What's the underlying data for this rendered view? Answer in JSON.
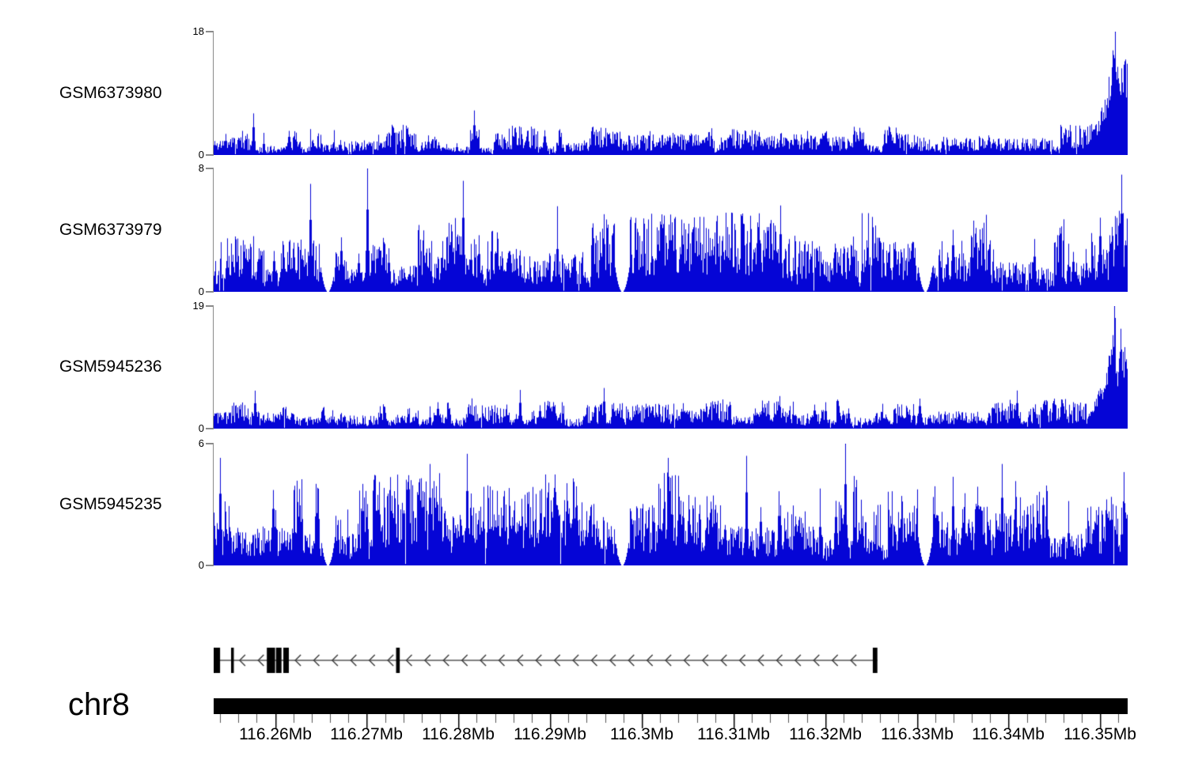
{
  "page": {
    "background": "#ffffff"
  },
  "colors": {
    "signal": "#0505d6",
    "axis_gray": "#8a8a8a",
    "ink": "#000000",
    "gene": "#000000"
  },
  "tracks": [
    {
      "label": "GSM6373980",
      "ymax_label": "18",
      "ymin_label": "0"
    },
    {
      "label": "GSM6373979",
      "ymax_label": "8",
      "ymin_label": "0"
    },
    {
      "label": "GSM5945236",
      "ymax_label": "19",
      "ymin_label": "0"
    },
    {
      "label": "GSM5945235",
      "ymax_label": "6",
      "ymin_label": "0"
    }
  ],
  "chromosome": {
    "name": "chr8"
  },
  "genome_axis": {
    "range_mb": [
      116.2533,
      116.353
    ],
    "minor_step_mb": 0.002,
    "unit": "Mb",
    "major_ticks": [
      {
        "mb": 116.26,
        "label": "116.26Mb"
      },
      {
        "mb": 116.27,
        "label": "116.27Mb"
      },
      {
        "mb": 116.28,
        "label": "116.28Mb"
      },
      {
        "mb": 116.29,
        "label": "116.29Mb"
      },
      {
        "mb": 116.3,
        "label": "116.3Mb"
      },
      {
        "mb": 116.31,
        "label": "116.31Mb"
      },
      {
        "mb": 116.32,
        "label": "116.32Mb"
      },
      {
        "mb": 116.33,
        "label": "116.33Mb"
      },
      {
        "mb": 116.34,
        "label": "116.34Mb"
      },
      {
        "mb": 116.35,
        "label": "116.35Mb"
      }
    ]
  },
  "gene_model": {
    "chromosome": "chr8",
    "strand": "-",
    "span_mb": [
      116.2532,
      116.3257
    ],
    "exons_mb": [
      [
        116.2532,
        116.254
      ],
      [
        116.2552,
        116.2555
      ],
      [
        116.2591,
        116.26
      ],
      [
        116.2601,
        116.2607
      ],
      [
        116.2609,
        116.2615
      ],
      [
        116.2732,
        116.2736
      ],
      [
        116.3252,
        116.3257
      ]
    ]
  },
  "chart_data": {
    "type": "area",
    "title": "",
    "x_range_mb": [
      116.2533,
      116.353
    ],
    "legend": "none",
    "grid": false,
    "series": [
      {
        "name": "GSM6373980",
        "ylim": [
          0,
          18
        ],
        "seed": 11,
        "base": 1.5,
        "spike_rate": 0.05,
        "spike_pow": 2,
        "spike_scale": 4.5,
        "peaks": [
          {
            "x_frac": 0.285,
            "h": 6.5
          },
          {
            "x_frac": 0.9865,
            "h": 18
          }
        ],
        "dips": [],
        "surge": [
          [
            0.958,
            0.1
          ],
          [
            0.968,
            0.32
          ],
          [
            0.975,
            0.5
          ],
          [
            0.98,
            0.7
          ],
          [
            0.9865,
            1.0
          ],
          [
            0.99,
            0.58
          ],
          [
            0.9935,
            0.92
          ],
          [
            0.997,
            0.78
          ],
          [
            1.0,
            0.85
          ]
        ]
      },
      {
        "name": "GSM6373979",
        "ylim": [
          0,
          8
        ],
        "seed": 22,
        "base": 1.75,
        "spike_rate": 0.085,
        "spike_pow": 2,
        "spike_scale": 3.6,
        "peaks": [
          {
            "x_frac": 0.106,
            "h": 7.0
          },
          {
            "x_frac": 0.168,
            "h": 8.0
          },
          {
            "x_frac": 0.273,
            "h": 7.2
          },
          {
            "x_frac": 0.62,
            "h": 5.6
          },
          {
            "x_frac": 0.993,
            "h": 7.6
          }
        ],
        "dips": [
          0.125,
          0.447,
          0.778
        ],
        "surge": null
      },
      {
        "name": "GSM5945236",
        "ylim": [
          0,
          19
        ],
        "seed": 33,
        "base": 1.6,
        "spike_rate": 0.05,
        "spike_pow": 2,
        "spike_scale": 4.5,
        "peaks": [
          {
            "x_frac": 0.335,
            "h": 6.0
          },
          {
            "x_frac": 0.427,
            "h": 6.3
          },
          {
            "x_frac": 0.9855,
            "h": 19
          }
        ],
        "dips": [],
        "surge": [
          [
            0.956,
            0.1
          ],
          [
            0.968,
            0.33
          ],
          [
            0.978,
            0.55
          ],
          [
            0.9855,
            1.0
          ],
          [
            0.989,
            0.5
          ],
          [
            0.9925,
            0.85
          ],
          [
            0.996,
            0.68
          ],
          [
            1.0,
            0.62
          ]
        ]
      },
      {
        "name": "GSM5945235",
        "ylim": [
          0,
          6
        ],
        "seed": 44,
        "base": 1.55,
        "spike_rate": 0.09,
        "spike_pow": 2,
        "spike_scale": 3.1,
        "peaks": [
          {
            "x_frac": 0.007,
            "h": 5.3
          },
          {
            "x_frac": 0.236,
            "h": 5.0
          },
          {
            "x_frac": 0.277,
            "h": 5.5
          },
          {
            "x_frac": 0.497,
            "h": 5.3
          },
          {
            "x_frac": 0.583,
            "h": 5.4
          },
          {
            "x_frac": 0.691,
            "h": 6.0
          },
          {
            "x_frac": 0.862,
            "h": 5.0
          },
          {
            "x_frac": 0.996,
            "h": 4.6
          }
        ],
        "dips": [
          0.125,
          0.447,
          0.778
        ],
        "surge": null
      }
    ]
  }
}
